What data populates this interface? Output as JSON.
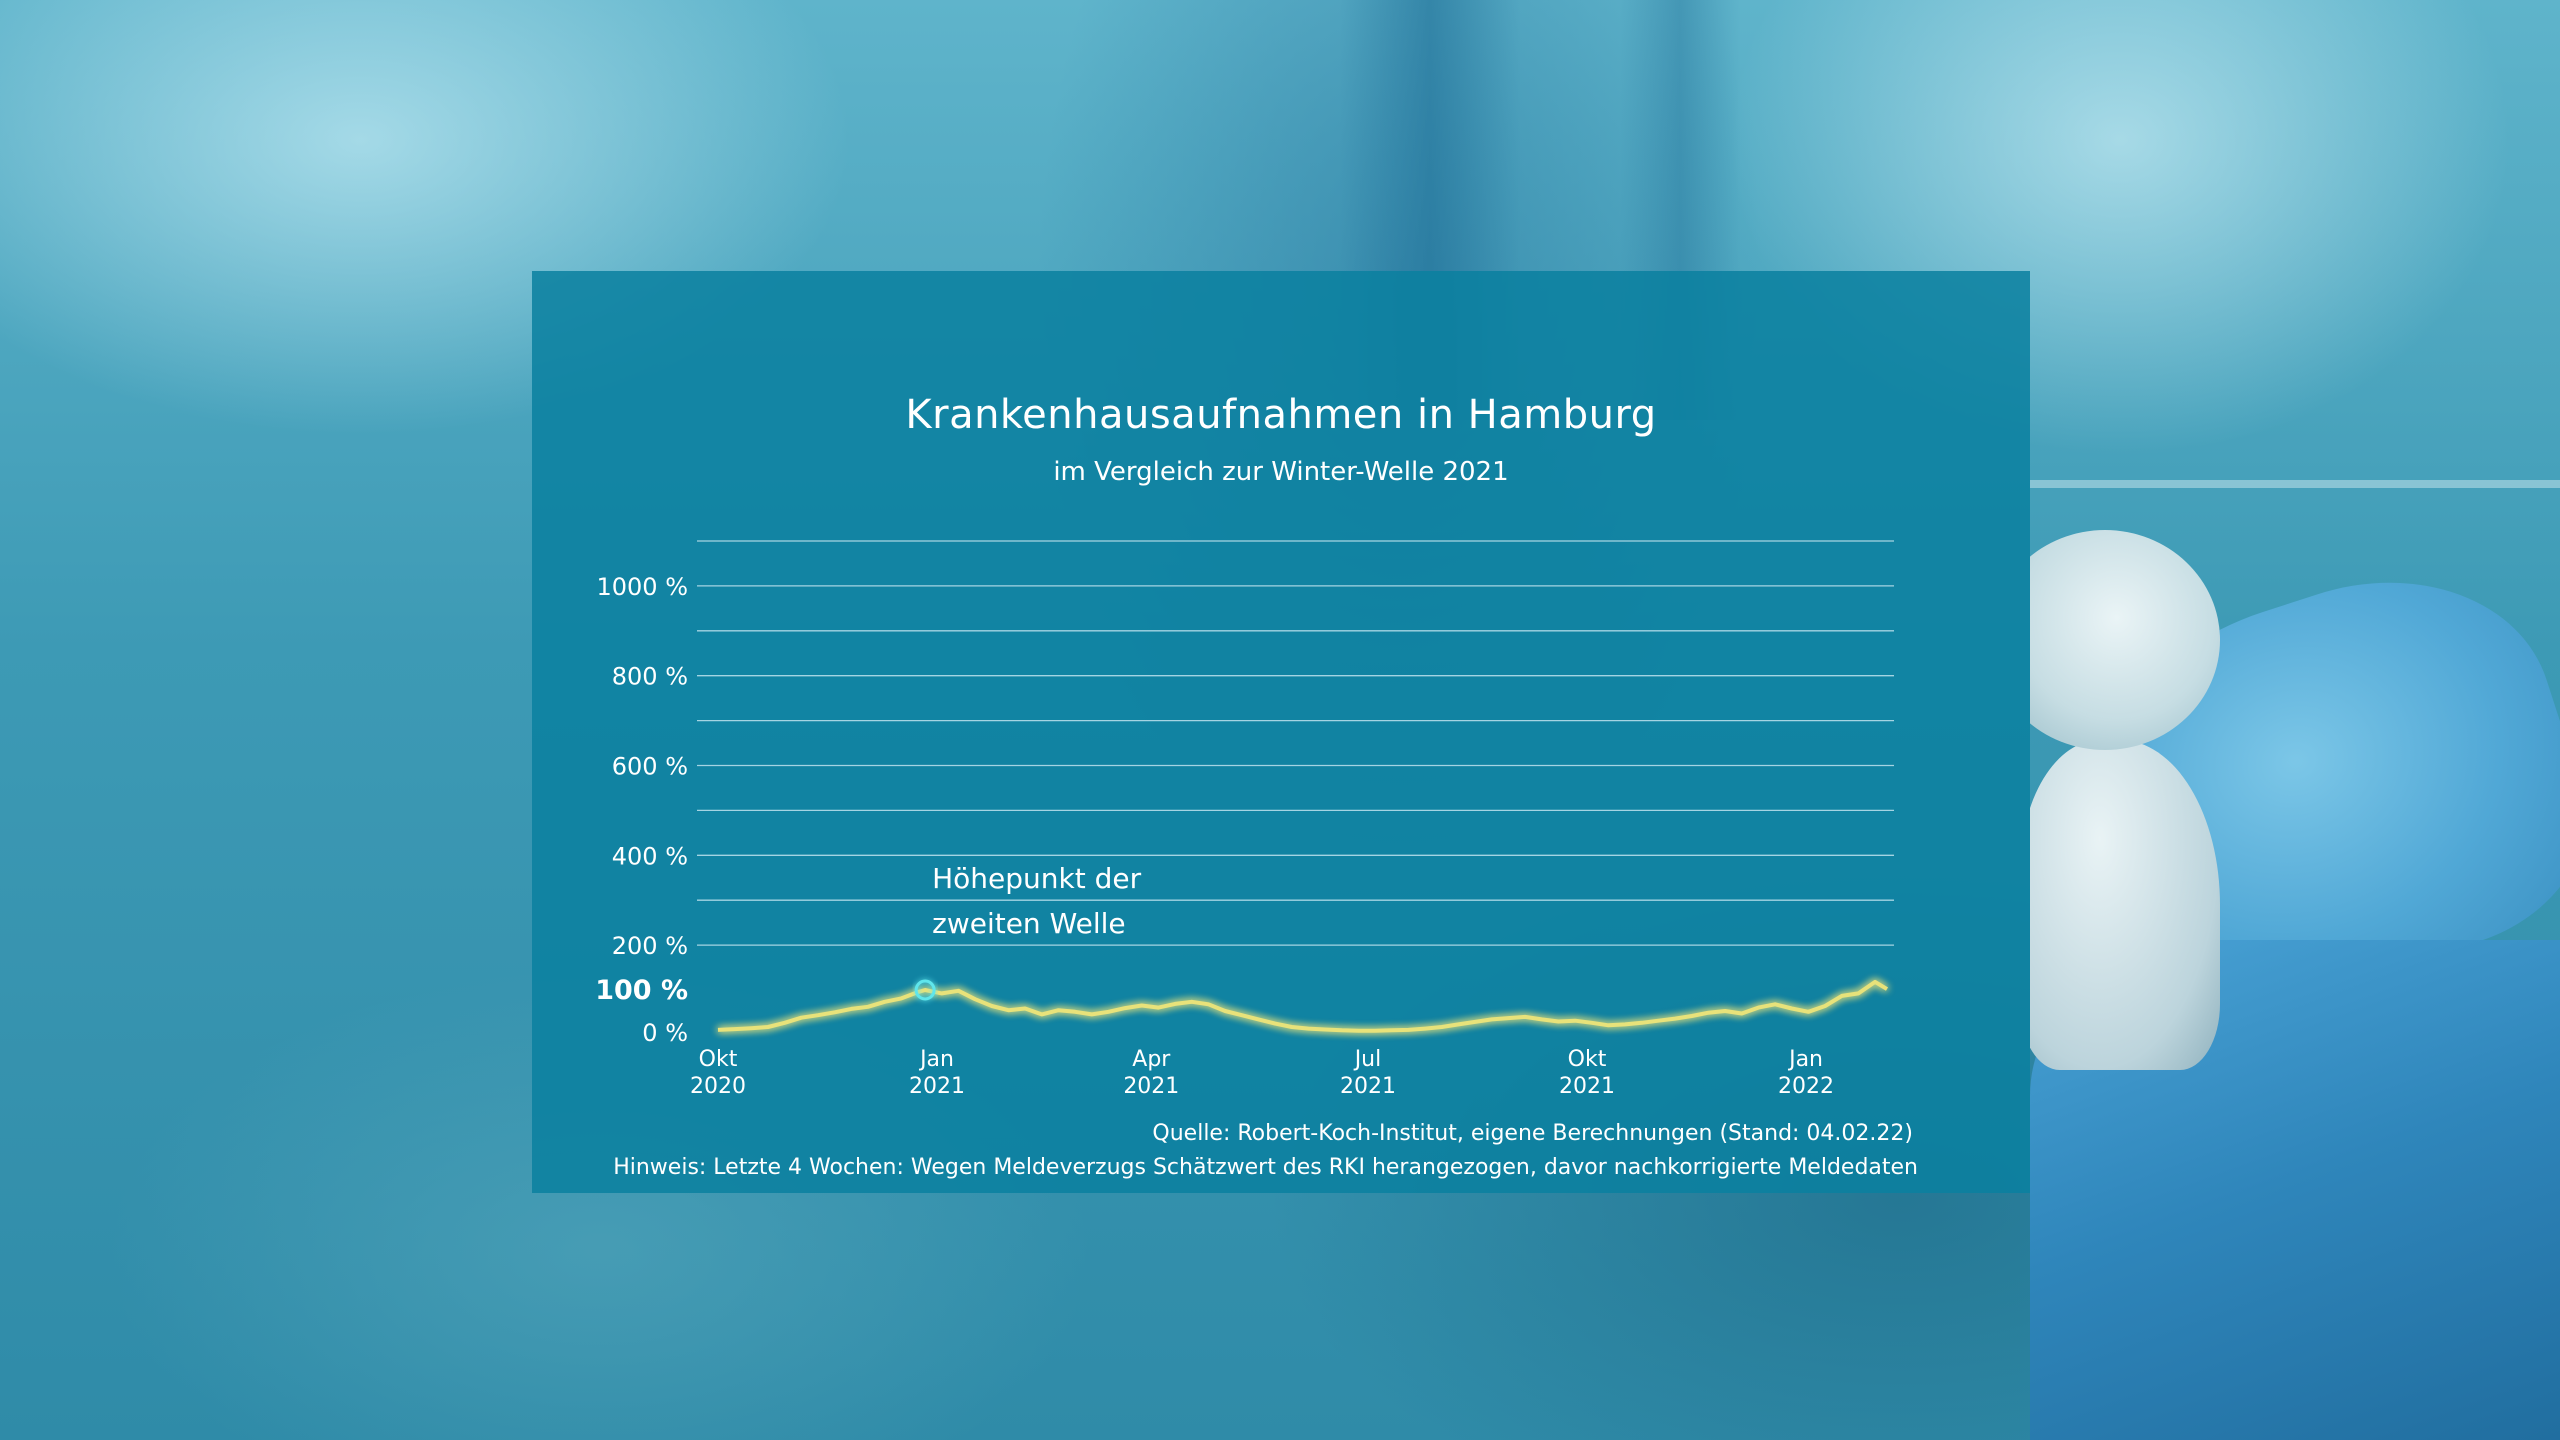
{
  "title": "Krankenhausaufnahmen in Hamburg",
  "subtitle": "im Vergleich zur Winter-Welle 2021",
  "source": "Quelle: Robert-Koch-Institut, eigene Berechnungen (Stand: 04.02.22)",
  "note": "Hinweis: Letzte 4 Wochen: Wegen Meldeverzugs Schätzwert des RKI herangezogen, davor nachkorrigierte Meldedaten",
  "colors": {
    "panel": "#0b80a0",
    "line": "#f5f0a0",
    "line_glow": "#e8e27a",
    "reference": "#ffffff",
    "annotation": "#5fe6ec",
    "grid": "#bfe3ee"
  },
  "chart_data": {
    "type": "line",
    "title": "Krankenhausaufnahmen in Hamburg",
    "subtitle": "im Vergleich zur Winter-Welle 2021",
    "xlabel": "",
    "ylabel": "",
    "x_range": [
      "2020-10-01",
      "2022-02-04"
    ],
    "ylim": [
      0,
      1100
    ],
    "y_ticks": [
      {
        "value": 0,
        "label": "0 %",
        "bold": false
      },
      {
        "value": 100,
        "label": "100 %",
        "bold": true
      },
      {
        "value": 200,
        "label": "200 %",
        "bold": false
      },
      {
        "value": 400,
        "label": "400 %",
        "bold": false
      },
      {
        "value": 600,
        "label": "600 %",
        "bold": false
      },
      {
        "value": 800,
        "label": "800 %",
        "bold": false
      },
      {
        "value": 1000,
        "label": "1000 %",
        "bold": false
      }
    ],
    "gridlines": [
      100,
      200,
      300,
      400,
      500,
      600,
      700,
      800,
      900,
      1000,
      1100
    ],
    "x_ticks": [
      {
        "date": "2020-10-01",
        "line1": "Okt",
        "line2": "2020"
      },
      {
        "date": "2021-01-01",
        "line1": "Jan",
        "line2": "2021"
      },
      {
        "date": "2021-04-01",
        "line1": "Apr",
        "line2": "2021"
      },
      {
        "date": "2021-07-01",
        "line1": "Jul",
        "line2": "2021"
      },
      {
        "date": "2021-10-01",
        "line1": "Okt",
        "line2": "2021"
      },
      {
        "date": "2022-01-01",
        "line1": "Jan",
        "line2": "2022"
      }
    ],
    "reference_line": {
      "value": 100,
      "style": "dashed"
    },
    "grid": true,
    "legend": "none",
    "annotation": {
      "date": "2020-12-27",
      "value": 100,
      "line1": "Höhepunkt der",
      "line2": "zweiten Welle"
    },
    "series": [
      {
        "points": [
          [
            "2020-10-01",
            5
          ],
          [
            "2020-10-08",
            7
          ],
          [
            "2020-10-15",
            9
          ],
          [
            "2020-10-22",
            12
          ],
          [
            "2020-10-29",
            22
          ],
          [
            "2020-11-05",
            34
          ],
          [
            "2020-11-12",
            40
          ],
          [
            "2020-11-19",
            47
          ],
          [
            "2020-11-26",
            55
          ],
          [
            "2020-12-03",
            60
          ],
          [
            "2020-12-10",
            72
          ],
          [
            "2020-12-17",
            80
          ],
          [
            "2020-12-24",
            95
          ],
          [
            "2020-12-27",
            100
          ],
          [
            "2021-01-03",
            92
          ],
          [
            "2021-01-10",
            98
          ],
          [
            "2021-01-17",
            78
          ],
          [
            "2021-01-24",
            62
          ],
          [
            "2021-01-31",
            52
          ],
          [
            "2021-02-07",
            56
          ],
          [
            "2021-02-14",
            42
          ],
          [
            "2021-02-21",
            52
          ],
          [
            "2021-02-28",
            48
          ],
          [
            "2021-03-07",
            42
          ],
          [
            "2021-03-14",
            48
          ],
          [
            "2021-03-21",
            57
          ],
          [
            "2021-03-28",
            63
          ],
          [
            "2021-04-04",
            58
          ],
          [
            "2021-04-11",
            67
          ],
          [
            "2021-04-18",
            72
          ],
          [
            "2021-04-25",
            66
          ],
          [
            "2021-05-02",
            50
          ],
          [
            "2021-05-09",
            40
          ],
          [
            "2021-05-16",
            30
          ],
          [
            "2021-05-23",
            20
          ],
          [
            "2021-05-30",
            12
          ],
          [
            "2021-06-06",
            8
          ],
          [
            "2021-06-13",
            6
          ],
          [
            "2021-06-20",
            4
          ],
          [
            "2021-06-27",
            3
          ],
          [
            "2021-07-04",
            3
          ],
          [
            "2021-07-11",
            4
          ],
          [
            "2021-07-18",
            5
          ],
          [
            "2021-07-25",
            8
          ],
          [
            "2021-08-01",
            12
          ],
          [
            "2021-08-08",
            18
          ],
          [
            "2021-08-15",
            24
          ],
          [
            "2021-08-22",
            30
          ],
          [
            "2021-08-29",
            33
          ],
          [
            "2021-09-05",
            36
          ],
          [
            "2021-09-12",
            30
          ],
          [
            "2021-09-19",
            25
          ],
          [
            "2021-09-26",
            27
          ],
          [
            "2021-10-03",
            22
          ],
          [
            "2021-10-10",
            16
          ],
          [
            "2021-10-17",
            18
          ],
          [
            "2021-10-24",
            22
          ],
          [
            "2021-10-31",
            27
          ],
          [
            "2021-11-07",
            32
          ],
          [
            "2021-11-14",
            38
          ],
          [
            "2021-11-21",
            46
          ],
          [
            "2021-11-28",
            50
          ],
          [
            "2021-12-05",
            44
          ],
          [
            "2021-12-12",
            58
          ],
          [
            "2021-12-19",
            66
          ],
          [
            "2021-12-26",
            56
          ],
          [
            "2022-01-02",
            48
          ],
          [
            "2022-01-09",
            62
          ],
          [
            "2022-01-16",
            86
          ],
          [
            "2022-01-23",
            92
          ],
          [
            "2022-01-30",
            118
          ],
          [
            "2022-02-04",
            102
          ]
        ]
      }
    ]
  }
}
